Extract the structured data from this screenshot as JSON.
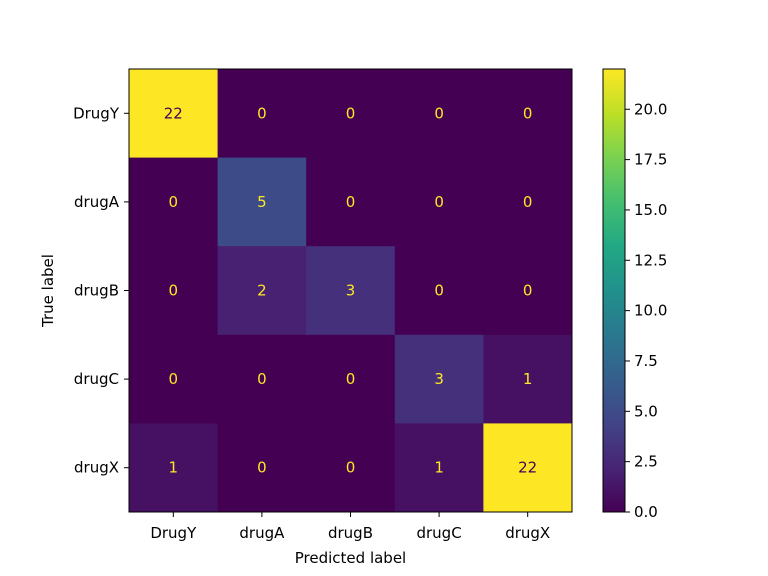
{
  "chart_data": {
    "type": "heatmap",
    "xlabel": "Predicted label",
    "ylabel": "True label",
    "x_categories": [
      "DrugY",
      "drugA",
      "drugB",
      "drugC",
      "drugX"
    ],
    "y_categories": [
      "DrugY",
      "drugA",
      "drugB",
      "drugC",
      "drugX"
    ],
    "matrix": [
      [
        22,
        0,
        0,
        0,
        0
      ],
      [
        0,
        5,
        0,
        0,
        0
      ],
      [
        0,
        2,
        3,
        0,
        0
      ],
      [
        0,
        0,
        0,
        3,
        1
      ],
      [
        1,
        0,
        0,
        1,
        22
      ]
    ],
    "colorbar": {
      "range": [
        0,
        22
      ],
      "ticks": [
        "0.0",
        "2.5",
        "5.0",
        "7.5",
        "10.0",
        "12.5",
        "15.0",
        "17.5",
        "20.0"
      ],
      "colormap": "viridis"
    },
    "text_colors": {
      "low": "#fde725",
      "high": "#440154"
    },
    "grid": false
  }
}
